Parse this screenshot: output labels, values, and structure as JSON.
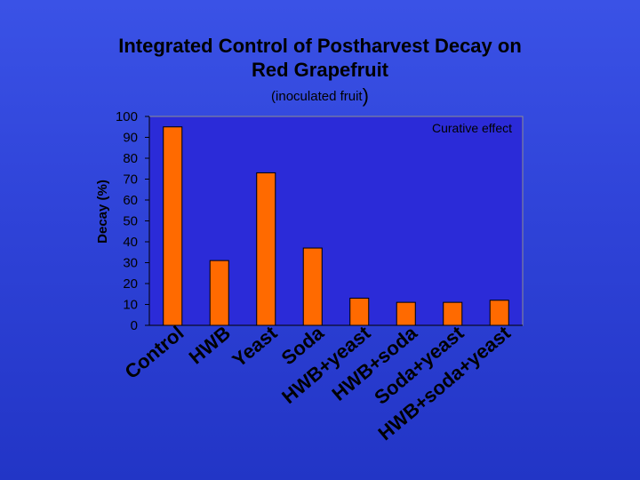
{
  "slide": {
    "title_line1": "Integrated Control of Postharvest Decay on",
    "title_line2": "Red Grapefruit",
    "subtitle_text": "(inoculated fruit",
    "subtitle_close": ")"
  },
  "colors": {
    "background": "#2f43d8",
    "plot_area": "#2b2bd8",
    "bar": "#ff6a00",
    "text": "#000000"
  },
  "chart_data": {
    "type": "bar",
    "title": "Integrated Control of Postharvest Decay on Red Grapefruit",
    "subtitle": "(inoculated fruit)",
    "annotation": "Curative effect",
    "xlabel": "",
    "ylabel": "Decay (%)",
    "ylim": [
      0,
      100
    ],
    "yticks": [
      0,
      10,
      20,
      30,
      40,
      50,
      60,
      70,
      80,
      90,
      100
    ],
    "grid": false,
    "categories": [
      "Control",
      "HWB",
      "Yeast",
      "Soda",
      "HWB+yeast",
      "HWB+soda",
      "Soda+yeast",
      "HWB+soda+yeast"
    ],
    "values": [
      95,
      31,
      73,
      37,
      13,
      11,
      11,
      12
    ]
  }
}
